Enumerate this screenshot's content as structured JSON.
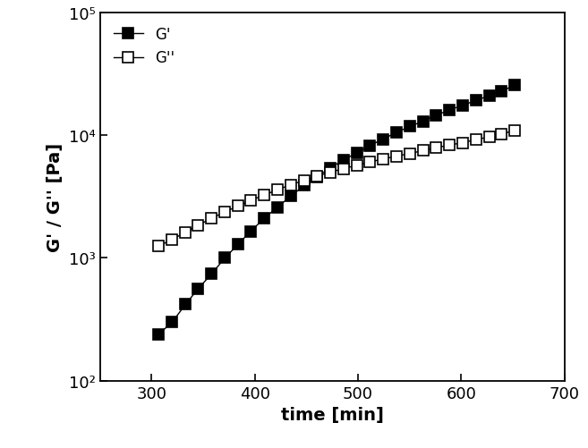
{
  "chart_data": {
    "type": "scatter",
    "xlabel": "time [min]",
    "ylabel": "G' / G'' [Pa]",
    "log": "y",
    "legend": "upper left",
    "xlim": [
      250,
      700
    ],
    "xticks": [
      300,
      400,
      500,
      600,
      700
    ],
    "ylim": [
      100,
      100000
    ],
    "yticks": [
      {
        "value": 100,
        "label": "10²"
      },
      {
        "value": 1000,
        "label": "10³"
      },
      {
        "value": 10000,
        "label": "10⁴"
      },
      {
        "value": 100000,
        "label": "10⁵"
      }
    ],
    "x": [
      307,
      320,
      333,
      345,
      358,
      371,
      384,
      396,
      409,
      422,
      435,
      448,
      460,
      473,
      486,
      499,
      511,
      524,
      537,
      550,
      563,
      575,
      588,
      601,
      614,
      627,
      639,
      652
    ],
    "series": [
      {
        "name": "G'",
        "color": "#000000",
        "marker": "square",
        "line_style": "solid",
        "values": [
          240,
          300,
          420,
          560,
          740,
          1000,
          1300,
          1650,
          2100,
          2600,
          3200,
          3900,
          4600,
          5400,
          6300,
          7200,
          8200,
          9300,
          10500,
          11800,
          13000,
          14500,
          16000,
          17500,
          19200,
          21000,
          23000,
          25500
        ]
      },
      {
        "name": "G''",
        "color": "#000000",
        "marker": "open-square",
        "line_style": "solid",
        "values": [
          1250,
          1420,
          1620,
          1850,
          2100,
          2380,
          2650,
          2950,
          3250,
          3600,
          3950,
          4300,
          4650,
          5000,
          5350,
          5700,
          6050,
          6400,
          6750,
          7100,
          7500,
          7900,
          8300,
          8700,
          9200,
          9700,
          10200,
          11000
        ]
      }
    ]
  }
}
